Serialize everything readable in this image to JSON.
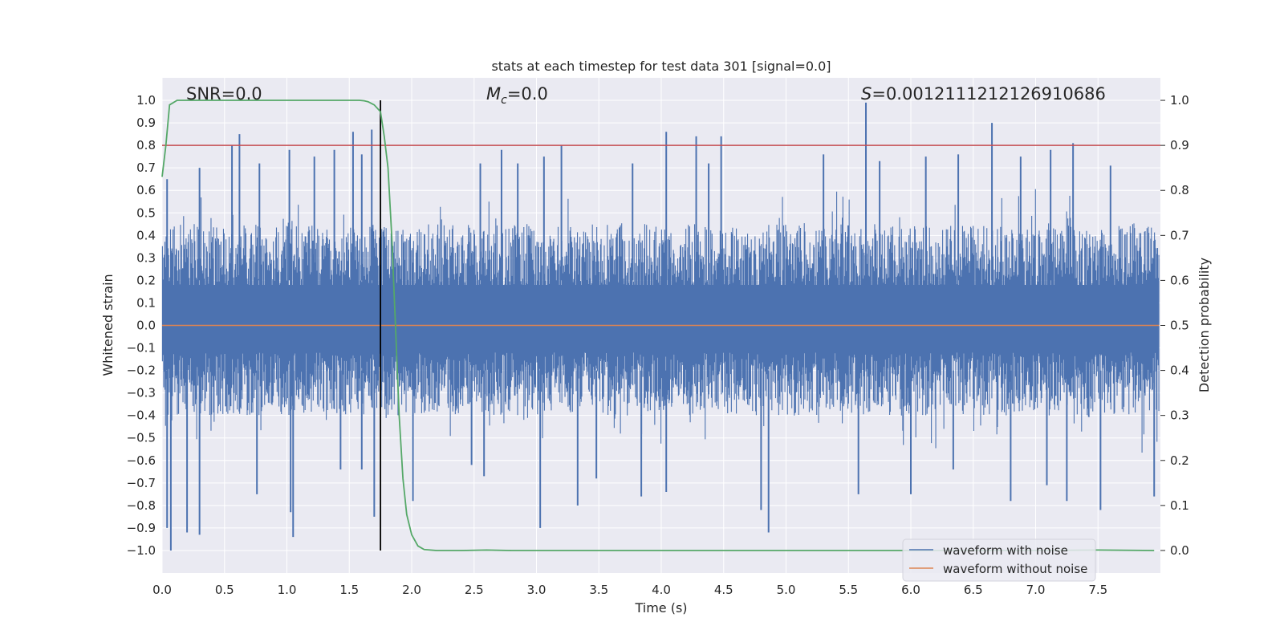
{
  "chart_data": {
    "type": "line",
    "title": "stats at each timestep for test data 301 [signal=0.0]",
    "xlabel": "Time (s)",
    "ylabel": "Whitened strain",
    "y2label": "Detection probability",
    "xlim": [
      0.0,
      8.0
    ],
    "ylim": [
      -1.1,
      1.1
    ],
    "y2lim": [
      -0.05,
      1.05
    ],
    "xticks": [
      "0.0",
      "0.5",
      "1.0",
      "1.5",
      "2.0",
      "2.5",
      "3.0",
      "3.5",
      "4.0",
      "4.5",
      "5.0",
      "5.5",
      "6.0",
      "6.5",
      "7.0",
      "7.5"
    ],
    "yticks": [
      "1.0",
      "0.9",
      "0.8",
      "0.7",
      "0.6",
      "0.5",
      "0.4",
      "0.3",
      "0.2",
      "0.1",
      "0.0",
      "−0.1",
      "−0.2",
      "−0.3",
      "−0.4",
      "−0.5",
      "−0.6",
      "−0.7",
      "−0.8",
      "−0.9",
      "−1.0"
    ],
    "y2ticks": [
      "1.0",
      "0.9",
      "0.8",
      "0.7",
      "0.6",
      "0.5",
      "0.4",
      "0.3",
      "0.2",
      "0.1",
      "0.0"
    ],
    "annotations": {
      "snr": "SNR=0.0",
      "mc_symbol": "M",
      "mc_sub": "c",
      "mc_value": "=0.0",
      "s_symbol": "S",
      "s_value": "=0.0012111212126910686"
    },
    "threshold_line": {
      "axis": "right",
      "value": 0.9,
      "color": "#c44e52"
    },
    "vertical_marker": {
      "x": 1.75,
      "y_from": -1.0,
      "y_to": 1.0,
      "color": "#000000"
    },
    "noise_envelope": {
      "name": "waveform with noise",
      "color": "#4c72b0",
      "typical_max": 0.45,
      "typical_min": -0.4,
      "peak_x": [
        0.04,
        0.3,
        0.56,
        0.62,
        0.78,
        1.02,
        1.22,
        1.38,
        1.53,
        1.6,
        1.68,
        2.55,
        2.72,
        2.85,
        3.06,
        3.2,
        3.77,
        4.04,
        4.28,
        4.38,
        4.48,
        5.3,
        5.64,
        5.75,
        6.12,
        6.38,
        6.65,
        6.88,
        7.12,
        7.3,
        7.6
      ],
      "peak_y": [
        0.65,
        0.7,
        0.8,
        0.85,
        0.72,
        0.78,
        0.75,
        0.78,
        0.86,
        0.76,
        0.87,
        0.72,
        0.78,
        0.72,
        0.75,
        0.8,
        0.72,
        0.86,
        0.84,
        0.72,
        0.84,
        0.76,
        0.99,
        0.73,
        0.75,
        0.76,
        0.9,
        0.75,
        0.78,
        0.81,
        0.71
      ],
      "trough_x": [
        0.04,
        0.07,
        0.2,
        0.3,
        0.76,
        1.03,
        1.05,
        1.43,
        1.6,
        1.7,
        2.01,
        2.48,
        2.58,
        3.03,
        3.33,
        3.48,
        3.84,
        4.04,
        4.8,
        4.86,
        5.58,
        6.0,
        6.34,
        6.8,
        7.09,
        7.25,
        7.52,
        7.95
      ],
      "trough_y": [
        -0.9,
        -1.0,
        -0.92,
        -0.93,
        -0.75,
        -0.83,
        -0.94,
        -0.64,
        -0.64,
        -0.85,
        -0.78,
        -0.62,
        -0.67,
        -0.9,
        -0.8,
        -0.68,
        -0.76,
        -0.74,
        -0.82,
        -0.92,
        -0.75,
        -0.75,
        -0.64,
        -0.78,
        -0.71,
        -0.78,
        -0.82,
        -0.76
      ]
    },
    "series": [
      {
        "name": "waveform with noise",
        "color": "#4c72b0",
        "axis": "left"
      },
      {
        "name": "waveform without noise",
        "color": "#dd8452",
        "axis": "left",
        "x": [
          0.0,
          7.99
        ],
        "y": [
          0.0,
          0.0
        ]
      },
      {
        "name": "detection probability",
        "color": "#55a868",
        "axis": "right",
        "x": [
          0.0,
          0.03,
          0.06,
          0.12,
          0.2,
          0.4,
          0.8,
          1.2,
          1.5,
          1.58,
          1.62,
          1.65,
          1.7,
          1.75,
          1.78,
          1.81,
          1.84,
          1.87,
          1.9,
          1.93,
          1.96,
          2.0,
          2.05,
          2.1,
          2.2,
          2.4,
          2.6,
          2.8,
          3.0,
          3.5,
          4.0,
          5.0,
          6.0,
          7.0,
          7.5,
          7.95
        ],
        "y": [
          0.83,
          0.9,
          0.99,
          1.0,
          1.0,
          1.0,
          1.0,
          1.0,
          1.0,
          1.0,
          0.999,
          0.997,
          0.99,
          0.975,
          0.92,
          0.85,
          0.7,
          0.5,
          0.3,
          0.16,
          0.08,
          0.035,
          0.01,
          0.002,
          0.0,
          0.0,
          0.001,
          0.0,
          0.0,
          0.0,
          0.0,
          0.0,
          0.0,
          0.0,
          0.001,
          0.0
        ]
      }
    ],
    "legend": {
      "placement": "lower-right",
      "entries": [
        {
          "label": "waveform with noise",
          "color": "#4c72b0"
        },
        {
          "label": "waveform without noise",
          "color": "#dd8452"
        }
      ]
    }
  }
}
